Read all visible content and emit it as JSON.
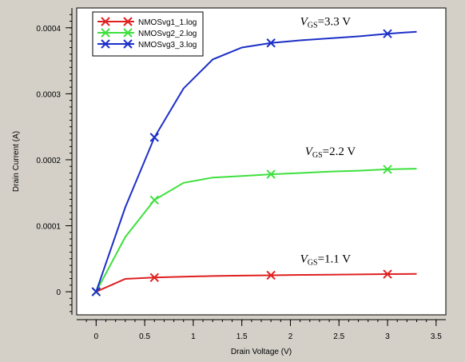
{
  "chart_data": {
    "type": "line",
    "title": "",
    "xlabel": "Drain Voltage (V)",
    "ylabel": "Drain Current (A)",
    "xlim": [
      -0.2,
      3.6
    ],
    "ylim": [
      -3.5e-05,
      0.00043
    ],
    "x_ticks": [
      0,
      0.5,
      1,
      1.5,
      2,
      2.5,
      3,
      3.5
    ],
    "x_tick_labels": [
      "0",
      "0.5",
      "1",
      "1.5",
      "2",
      "2.5",
      "3",
      "3.5"
    ],
    "y_ticks": [
      0,
      0.0001,
      0.0002,
      0.0003,
      0.0004
    ],
    "y_tick_labels": [
      "0",
      "0.0001",
      "0.0002",
      "0.0003",
      "0.0004"
    ],
    "grid": false,
    "legend_position": "top-left",
    "series": [
      {
        "name": "NMOSvg1_1.log",
        "color": "#e02020",
        "x": [
          0,
          0.3,
          0.6,
          0.9,
          1.2,
          1.5,
          1.8,
          2.1,
          2.4,
          2.7,
          3.0,
          3.3
        ],
        "y": [
          0,
          1.95e-05,
          2.15e-05,
          2.28e-05,
          2.38e-05,
          2.45e-05,
          2.5e-05,
          2.55e-05,
          2.59e-05,
          2.63e-05,
          2.67e-05,
          2.7e-05
        ],
        "marker_x": [
          0,
          0.6,
          1.8,
          3.0
        ],
        "marker_y": [
          0,
          2.15e-05,
          2.5e-05,
          2.67e-05
        ]
      },
      {
        "name": "NMOSvg2_2.log",
        "color": "#3ee03e",
        "x": [
          0,
          0.3,
          0.6,
          0.9,
          1.2,
          1.5,
          1.8,
          2.1,
          2.4,
          2.7,
          3.0,
          3.3
        ],
        "y": [
          0,
          8.3e-05,
          0.000139,
          0.000165,
          0.000173,
          0.0001755,
          0.000178,
          0.00018,
          0.000182,
          0.0001835,
          0.0001855,
          0.0001865
        ],
        "marker_x": [
          0,
          0.6,
          1.8,
          3.0
        ],
        "marker_y": [
          0,
          0.000139,
          0.000178,
          0.0001855
        ]
      },
      {
        "name": "NMOSvg3_3.log",
        "color": "#1c2fc8",
        "x": [
          0,
          0.3,
          0.6,
          0.9,
          1.2,
          1.5,
          1.8,
          2.1,
          2.4,
          2.7,
          3.0,
          3.3
        ],
        "y": [
          0,
          0.000128,
          0.000234,
          0.000308,
          0.000352,
          0.00037,
          0.000377,
          0.000381,
          0.000384,
          0.000387,
          0.000391,
          0.000394
        ],
        "marker_x": [
          0,
          0.6,
          1.8,
          3.0
        ],
        "marker_y": [
          0,
          0.000234,
          0.000377,
          0.000391
        ]
      }
    ],
    "annotations": [
      {
        "var": "V",
        "sub": "GS",
        "text": "=3.3 V",
        "x": 2.1,
        "y": 0.000404
      },
      {
        "var": "V",
        "sub": "GS",
        "text": "=2.2 V",
        "x": 2.15,
        "y": 0.000207
      },
      {
        "var": "V",
        "sub": "GS",
        "text": "=1.1 V",
        "x": 2.1,
        "y": 4.45e-05
      }
    ]
  }
}
